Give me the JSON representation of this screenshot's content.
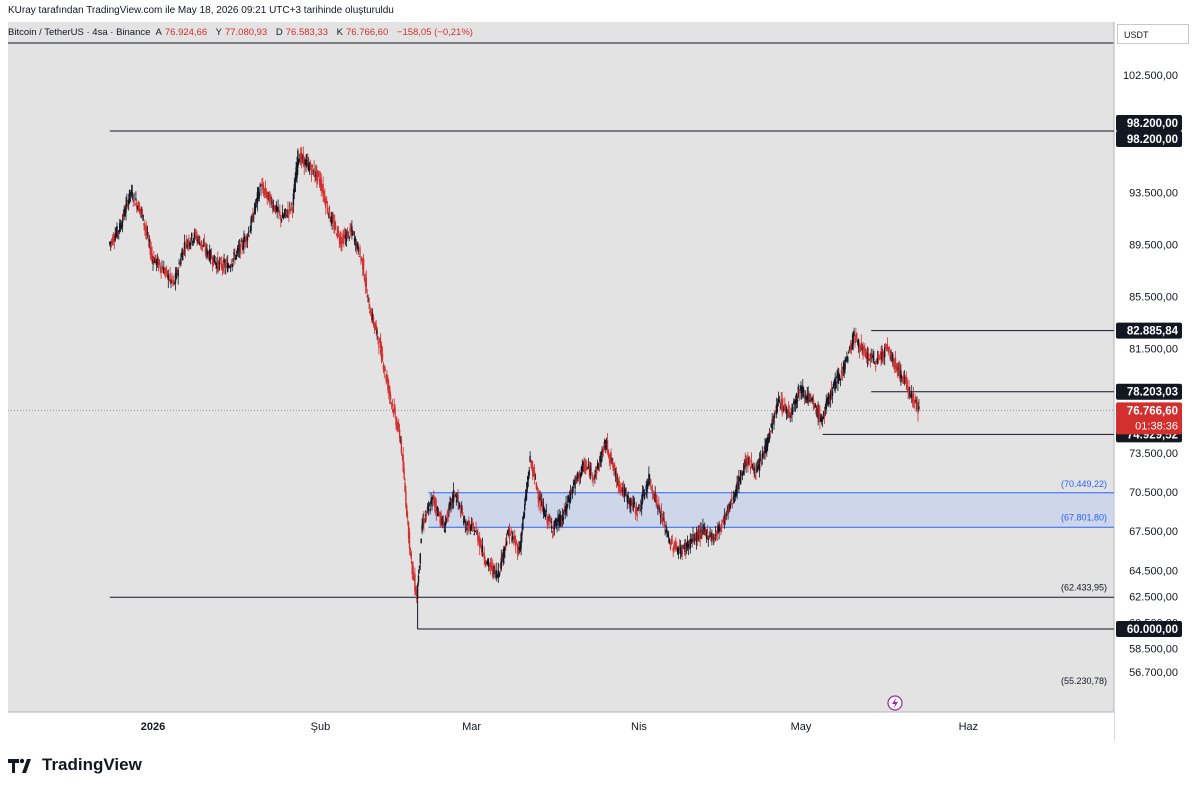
{
  "header": {
    "snapshot_text": "KUray tarafından TradingView.com ile May 18, 2026 09:21 UTC+3 tarihinde oluşturuldu"
  },
  "legend": {
    "symbol": "Bitcoin / TetherUS · 4sa · Binance",
    "open_label": "A",
    "open": "76.924,66",
    "high_label": "Y",
    "high": "77.080,93",
    "low_label": "D",
    "low": "76.583,33",
    "close_label": "K",
    "close": "76.766,60",
    "change": "−158,05 (−0,21%)"
  },
  "currency_button": "USDT",
  "footer": {
    "brand": "TradingView"
  },
  "colors": {
    "up": "#131722",
    "down": "#d32f2f",
    "zone_fill": "#c8d3ea",
    "zone_stroke": "#2962ff",
    "background": "#e3e3e3",
    "price_tag": "#131722",
    "last_price_tag": "#d32f2f"
  },
  "chart_data": {
    "type": "candlestick",
    "symbol": "Bitcoin / TetherUS",
    "interval": "4sa",
    "exchange": "Binance",
    "last_close": 76766.6,
    "ylim": [
      55230.78,
      104700
    ],
    "y_ticks": [
      {
        "value": 102500,
        "label": "102.500,00"
      },
      {
        "value": 97500,
        "label": "97.500,00"
      },
      {
        "value": 93500,
        "label": "93.500,00"
      },
      {
        "value": 89500,
        "label": "89.500,00"
      },
      {
        "value": 85500,
        "label": "85.500,00"
      },
      {
        "value": 81500,
        "label": "81.500,00"
      },
      {
        "value": 73500,
        "label": "73.500,00"
      },
      {
        "value": 70500,
        "label": "70.500,00"
      },
      {
        "value": 67500,
        "label": "67.500,00"
      },
      {
        "value": 64500,
        "label": "64.500,00"
      },
      {
        "value": 62500,
        "label": "62.500,00"
      },
      {
        "value": 60500,
        "label": "60.500,00"
      },
      {
        "value": 58500,
        "label": "58.500,00"
      },
      {
        "value": 56700,
        "label": "56.700,00"
      }
    ],
    "x_ticks": [
      {
        "date": "2026-01-01",
        "label": "2026",
        "bold": true
      },
      {
        "date": "2026-02-01",
        "label": "Şub",
        "bold": false
      },
      {
        "date": "2026-03-01",
        "label": "Mar",
        "bold": false
      },
      {
        "date": "2026-04-01",
        "label": "Nis",
        "bold": false
      },
      {
        "date": "2026-05-01",
        "label": "May",
        "bold": false
      },
      {
        "date": "2026-06-01",
        "label": "Haz",
        "bold": false
      }
    ],
    "x_range": [
      "2025-12-24",
      "2026-06-28"
    ],
    "price_path": [
      [
        "2025-12-24",
        89500
      ],
      [
        "2025-12-26",
        90800
      ],
      [
        "2025-12-28",
        93500
      ],
      [
        "2025-12-30",
        92000
      ],
      [
        "2026-01-01",
        88500
      ],
      [
        "2026-01-03",
        87600
      ],
      [
        "2026-01-05",
        86400
      ],
      [
        "2026-01-07",
        89500
      ],
      [
        "2026-01-09",
        90200
      ],
      [
        "2026-01-11",
        89000
      ],
      [
        "2026-01-13",
        88000
      ],
      [
        "2026-01-15",
        87800
      ],
      [
        "2026-01-17",
        89000
      ],
      [
        "2026-01-19",
        90500
      ],
      [
        "2026-01-21",
        94000
      ],
      [
        "2026-01-23",
        92800
      ],
      [
        "2026-01-25",
        91500
      ],
      [
        "2026-01-27",
        92500
      ],
      [
        "2026-01-28",
        96300
      ],
      [
        "2026-01-30",
        95500
      ],
      [
        "2026-02-01",
        94500
      ],
      [
        "2026-02-03",
        91500
      ],
      [
        "2026-02-05",
        89800
      ],
      [
        "2026-02-07",
        90500
      ],
      [
        "2026-02-09",
        88000
      ],
      [
        "2026-02-10",
        85000
      ],
      [
        "2026-02-12",
        82000
      ],
      [
        "2026-02-14",
        78000
      ],
      [
        "2026-02-16",
        74500
      ],
      [
        "2026-02-18",
        65000
      ],
      [
        "2026-02-19",
        62500
      ],
      [
        "2026-02-20",
        68000
      ],
      [
        "2026-02-22",
        70000
      ],
      [
        "2026-02-24",
        67800
      ],
      [
        "2026-02-26",
        70500
      ],
      [
        "2026-02-28",
        68000
      ],
      [
        "2026-03-02",
        67500
      ],
      [
        "2026-03-04",
        65000
      ],
      [
        "2026-03-06",
        64200
      ],
      [
        "2026-03-08",
        67500
      ],
      [
        "2026-03-10",
        66000
      ],
      [
        "2026-03-12",
        73000
      ],
      [
        "2026-03-14",
        69500
      ],
      [
        "2026-03-16",
        67800
      ],
      [
        "2026-03-18",
        68500
      ],
      [
        "2026-03-20",
        71000
      ],
      [
        "2026-03-22",
        72500
      ],
      [
        "2026-03-24",
        71800
      ],
      [
        "2026-03-26",
        74300
      ],
      [
        "2026-03-28",
        71500
      ],
      [
        "2026-03-30",
        70000
      ],
      [
        "2026-04-01",
        69000
      ],
      [
        "2026-04-03",
        71500
      ],
      [
        "2026-04-05",
        69000
      ],
      [
        "2026-04-07",
        66500
      ],
      [
        "2026-04-09",
        66000
      ],
      [
        "2026-04-11",
        66800
      ],
      [
        "2026-04-13",
        67500
      ],
      [
        "2026-04-15",
        67000
      ],
      [
        "2026-04-17",
        68500
      ],
      [
        "2026-04-19",
        70500
      ],
      [
        "2026-04-21",
        73000
      ],
      [
        "2026-04-23",
        72000
      ],
      [
        "2026-04-25",
        74500
      ],
      [
        "2026-04-27",
        77500
      ],
      [
        "2026-04-29",
        76500
      ],
      [
        "2026-05-01",
        78500
      ],
      [
        "2026-05-03",
        77500
      ],
      [
        "2026-05-05",
        76000
      ],
      [
        "2026-05-07",
        78500
      ],
      [
        "2026-05-09",
        80000
      ],
      [
        "2026-05-11",
        82500
      ],
      [
        "2026-05-13",
        81000
      ],
      [
        "2026-05-15",
        80500
      ],
      [
        "2026-05-17",
        81500
      ],
      [
        "2026-05-19",
        80000
      ],
      [
        "2026-05-21",
        78500
      ],
      [
        "2026-05-23",
        76770
      ]
    ],
    "horizontal_levels": [
      {
        "name": "98.200",
        "value": 98200,
        "label": "98.200,00",
        "from": "2025-12-24"
      },
      {
        "name": "82.885",
        "value": 82885.84,
        "label": "82.885,84",
        "from": "2026-05-14"
      },
      {
        "name": "78.203",
        "value": 78203.03,
        "label": "78.203,03",
        "from": "2026-05-14"
      },
      {
        "name": "74.929",
        "value": 74929.52,
        "label": "74.929,52",
        "from": "2026-05-05"
      },
      {
        "name": "62.433",
        "value": 62433.95,
        "label": "62.433,95",
        "from": "2025-12-24"
      },
      {
        "name": "60.000",
        "value": 60000.0,
        "label": "60.000,00",
        "from": "2026-02-19"
      }
    ],
    "zone": {
      "top": 70449.22,
      "bottom": 67801.8,
      "top_label": "(70.449,22)",
      "bottom_label": "(67.801,80)",
      "from": "2026-02-21"
    },
    "annotations": [
      {
        "name": "62.433",
        "value": 62433.95,
        "label": "(62.433,95)"
      },
      {
        "name": "55.230",
        "value": 55230.78,
        "label": "(55.230,78)"
      }
    ],
    "price_tags": [
      {
        "name": "98.200-a",
        "value": 98200,
        "label": "98.200,00",
        "kind": "dark"
      },
      {
        "name": "98.200-b",
        "value": 98200,
        "label": "98.200,00",
        "kind": "dark"
      },
      {
        "name": "82.885",
        "value": 82885.84,
        "label": "82.885,84",
        "kind": "dark"
      },
      {
        "name": "78.203",
        "value": 78203.03,
        "label": "78.203,03",
        "kind": "dark"
      },
      {
        "name": "74.929",
        "value": 74929.52,
        "label": "74.929,52",
        "kind": "dark"
      },
      {
        "name": "60.000",
        "value": 60000.0,
        "label": "60.000,00",
        "kind": "dark"
      }
    ],
    "last_price_tag": {
      "value": 76766.6,
      "label": "76.766,60",
      "countdown": "01:38:36"
    }
  }
}
